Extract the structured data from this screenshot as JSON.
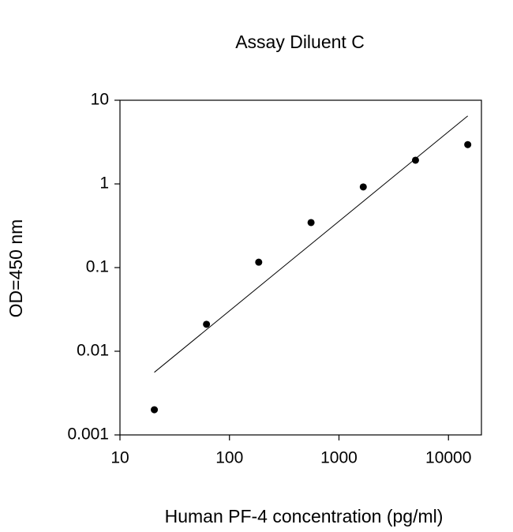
{
  "chart_data": {
    "type": "scatter",
    "title": "Assay Diluent C",
    "x_label": "Human PF-4 concentration (pg/ml)",
    "y_label": "OD=450 nm",
    "xscale": "log",
    "yscale": "log",
    "xlim": [
      10,
      20000
    ],
    "ylim": [
      0.001,
      10
    ],
    "xticks": [
      10,
      100,
      1000,
      10000
    ],
    "yticks": [
      0.001,
      0.01,
      0.1,
      1,
      10
    ],
    "grid": false,
    "series": [
      {
        "mode": "markers",
        "color": "#000000",
        "x": [
          20.6,
          61.7,
          185,
          556,
          1667,
          5000,
          15000
        ],
        "values": [
          0.002,
          0.021,
          0.116,
          0.345,
          0.92,
          1.92,
          2.95
        ]
      },
      {
        "mode": "line",
        "color": "#000000",
        "x": [
          20.6,
          15000
        ],
        "values": [
          0.0056,
          6.5
        ]
      }
    ]
  }
}
